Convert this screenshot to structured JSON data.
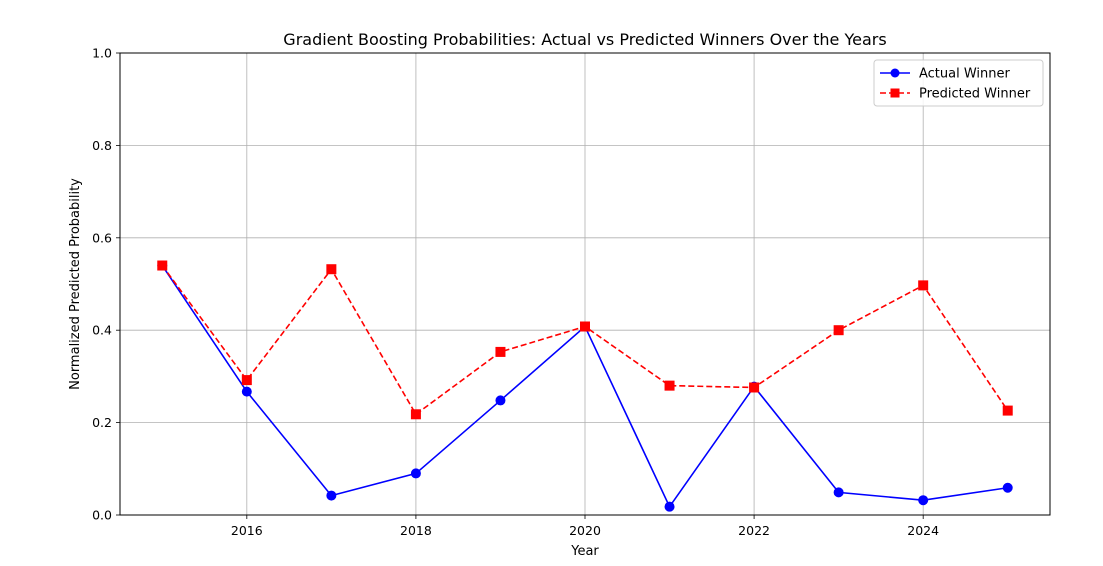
{
  "chart_data": {
    "type": "line",
    "title": "Gradient Boosting Probabilities: Actual vs Predicted Winners Over the Years",
    "xlabel": "Year",
    "ylabel": "Normalized Predicted Probability",
    "x": [
      2015,
      2016,
      2017,
      2018,
      2019,
      2020,
      2021,
      2022,
      2023,
      2024,
      2025
    ],
    "xticks": [
      "2016",
      "2018",
      "2020",
      "2022",
      "2024"
    ],
    "yticks": [
      "0.0",
      "0.2",
      "0.4",
      "0.6",
      "0.8",
      "1.0"
    ],
    "xlim": [
      2014.5,
      2025.5
    ],
    "ylim": [
      0,
      1
    ],
    "grid": true,
    "legend_position": "top-right",
    "series": [
      {
        "name": "Actual Winner",
        "color": "#0000ff",
        "line_style": "solid",
        "marker": "circle",
        "values": [
          0.54,
          0.267,
          0.042,
          0.09,
          0.248,
          0.408,
          0.018,
          0.278,
          0.049,
          0.032,
          0.059
        ]
      },
      {
        "name": "Predicted Winner",
        "color": "#ff0000",
        "line_style": "dashed",
        "marker": "square",
        "values": [
          0.54,
          0.292,
          0.532,
          0.218,
          0.353,
          0.408,
          0.28,
          0.276,
          0.4,
          0.497,
          0.226
        ]
      }
    ]
  }
}
